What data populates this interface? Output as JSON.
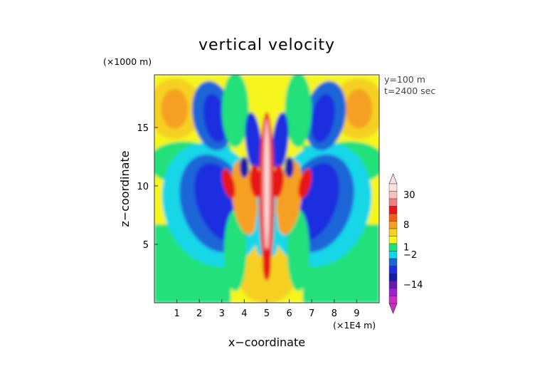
{
  "chart_data": {
    "type": "heatmap",
    "title": "vertical velocity",
    "xlabel": "x−coordinate",
    "ylabel": "z−coordinate",
    "x_units": "(×1E4 m)",
    "y_units": "(×1000 m)",
    "annotations": [
      "y=100 m",
      "t=2400 sec"
    ],
    "xlim": [
      0,
      10
    ],
    "ylim": [
      0,
      19.5
    ],
    "x_ticks": [
      "1",
      "2",
      "3",
      "4",
      "5",
      "6",
      "7",
      "8",
      "9"
    ],
    "y_ticks": [
      "5",
      "10",
      "15"
    ],
    "colorbar": {
      "tick_labels": [
        "30",
        "8",
        "1",
        "−2",
        "−14"
      ],
      "colors": [
        "#cc2ec2",
        "#a01fd0",
        "#6a1ab0",
        "#1a1aa8",
        "#1f2ee0",
        "#1a66d8",
        "#14d6e8",
        "#22e07a",
        "#f5f51e",
        "#f5d020",
        "#f5a020",
        "#f06018",
        "#e81818",
        "#f08080",
        "#f5c0c0",
        "#fce0e0"
      ]
    },
    "field_description": "symmetric gravity-wave pattern around x=5; strong updraft column near x=5, alternating positive and negative lobes",
    "peak_updraft": {
      "x": 5.0,
      "z": 10.0,
      "value": 30
    },
    "lobes": [
      {
        "x": 2.6,
        "z": 8.5,
        "value": -4
      },
      {
        "x": 7.4,
        "z": 8.5,
        "value": -4
      },
      {
        "x": 2.6,
        "z": 16.0,
        "value": -6
      },
      {
        "x": 7.6,
        "z": 16.0,
        "value": -6
      },
      {
        "x": 4.0,
        "z": 9.5,
        "value": 6
      },
      {
        "x": 6.0,
        "z": 9.5,
        "value": 6
      },
      {
        "x": 0.8,
        "z": 16.0,
        "value": 1
      },
      {
        "x": 9.2,
        "z": 16.0,
        "value": 1
      }
    ]
  }
}
